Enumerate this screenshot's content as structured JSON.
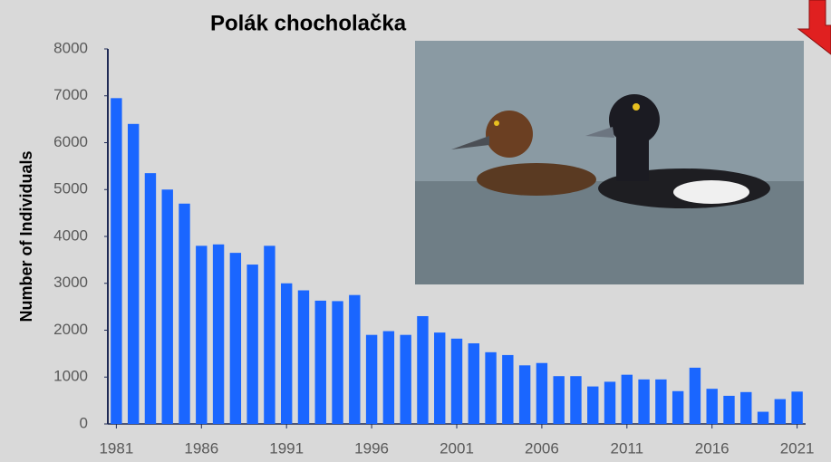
{
  "chart_data": {
    "type": "bar",
    "title": "Polák chocholačka",
    "y_label": "Number of Individuals",
    "x": [
      1981,
      1982,
      1983,
      1984,
      1985,
      1986,
      1987,
      1988,
      1989,
      1990,
      1991,
      1992,
      1993,
      1994,
      1995,
      1996,
      1997,
      1998,
      1999,
      2000,
      2001,
      2002,
      2003,
      2004,
      2005,
      2006,
      2007,
      2008,
      2009,
      2010,
      2011,
      2012,
      2013,
      2014,
      2015,
      2016,
      2017,
      2018,
      2019,
      2020,
      2021
    ],
    "values": [
      6950,
      6400,
      5350,
      5000,
      4700,
      3800,
      3830,
      3650,
      3400,
      3800,
      3000,
      2850,
      2630,
      2620,
      2750,
      1900,
      1980,
      1900,
      2300,
      1950,
      1820,
      1720,
      1530,
      1470,
      1250,
      1300,
      1020,
      1020,
      800,
      900,
      1050,
      950,
      950,
      700,
      1200,
      750,
      600,
      680,
      260,
      530,
      690
    ],
    "color": "#1a66ff",
    "xlim": [
      1980.5,
      2021.5
    ],
    "xticks": [
      1981,
      1986,
      1991,
      1996,
      2001,
      2006,
      2011,
      2016,
      2021
    ],
    "ylim": [
      0,
      8000
    ],
    "yticks": [
      0,
      1000,
      2000,
      3000,
      4000,
      5000,
      6000,
      7000,
      8000
    ],
    "grid": false
  }
}
